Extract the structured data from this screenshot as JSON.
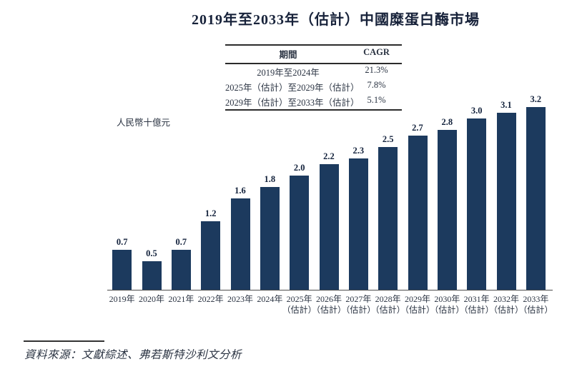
{
  "page": {
    "title": "2019年至2033年（估計）中國糜蛋白酶市場",
    "source_note": "資料來源：文獻綜述、弗若斯特沙利文分析"
  },
  "cagr_table": {
    "col_headers": [
      "期間",
      "CAGR"
    ],
    "rows": [
      {
        "period": "2019年至2024年",
        "cagr": "21.3%"
      },
      {
        "period": "2025年（估計）至2029年（估計）",
        "cagr": "7.8%"
      },
      {
        "period": "2029年（估計）至2033年（估計）",
        "cagr": "5.1%"
      }
    ]
  },
  "chart_data": {
    "type": "bar",
    "title": "2019年至2033年（估計）中國糜蛋白酶市場",
    "ylabel": "人民幣十億元",
    "categories": [
      "2019年",
      "2020年",
      "2021年",
      "2022年",
      "2023年",
      "2024年",
      "2025年（估計）",
      "2026年（估計）",
      "2027年（估計）",
      "2028年（估計）",
      "2029年（估計）",
      "2030年（估計）",
      "2031年（估計）",
      "2032年（估計）",
      "2033年（估計）"
    ],
    "values": [
      0.7,
      0.5,
      0.7,
      1.2,
      1.6,
      1.8,
      2.0,
      2.2,
      2.3,
      2.5,
      2.7,
      2.8,
      3.0,
      3.1,
      3.2
    ],
    "ylim": [
      0,
      3.5
    ],
    "grid": false,
    "legend": "none",
    "bar_color": "#1c3a5e"
  },
  "colors": {
    "bar": "#1c3a5e",
    "ink": "#2a3342",
    "axis_line": "#4d4d4d"
  }
}
